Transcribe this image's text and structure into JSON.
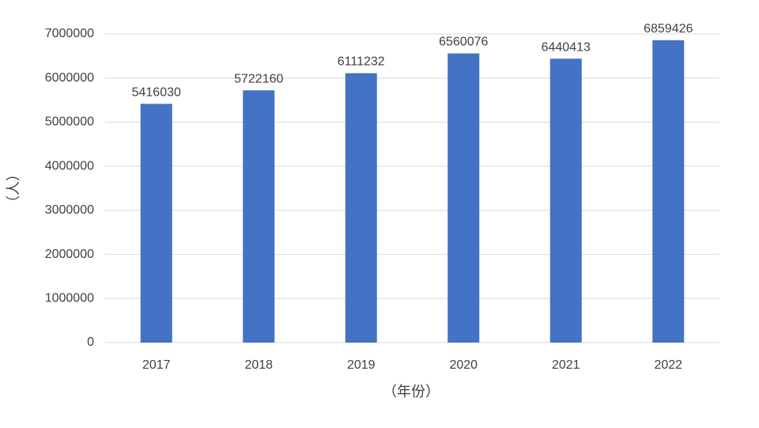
{
  "chart_data": {
    "type": "bar",
    "x_label": "（年份）",
    "y_label": "（人）",
    "categories": [
      "2017",
      "2018",
      "2019",
      "2020",
      "2021",
      "2022"
    ],
    "values": [
      5416030,
      5722160,
      6111232,
      6560076,
      6440413,
      6859426
    ],
    "color": "#4472c4",
    "ylim": [
      0,
      7000000
    ],
    "yticks": [
      0,
      1000000,
      2000000,
      3000000,
      4000000,
      5000000,
      6000000,
      7000000
    ],
    "grid": true
  }
}
